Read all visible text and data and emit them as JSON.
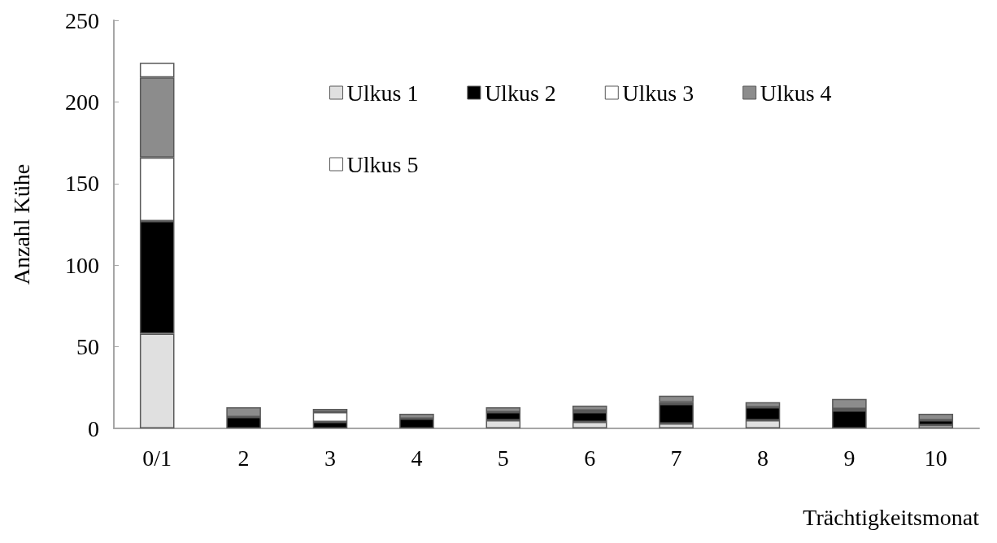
{
  "chart_data": {
    "type": "bar",
    "stacked": true,
    "xlabel": "Trächtigkeitsmonat",
    "ylabel": "Anzahl Kühe",
    "categories": [
      "0/1",
      "2",
      "3",
      "4",
      "5",
      "6",
      "7",
      "8",
      "9",
      "10"
    ],
    "series": [
      {
        "name": "Ulkus 1",
        "color": "#e0e0e0",
        "values": [
          58,
          null,
          null,
          null,
          5,
          4,
          3,
          5,
          null,
          2
        ]
      },
      {
        "name": "Ulkus 2",
        "color": "#000000",
        "values": [
          69,
          7,
          4,
          6,
          5,
          6,
          12,
          8,
          11,
          3
        ]
      },
      {
        "name": "Ulkus 3",
        "color": "#ffffff",
        "values": [
          39,
          null,
          6,
          null,
          null,
          1,
          1,
          null,
          1,
          null
        ]
      },
      {
        "name": "Ulkus 4",
        "color": "#8c8c8c",
        "values": [
          49,
          6,
          2,
          3,
          3,
          3,
          4,
          3,
          6,
          4
        ]
      },
      {
        "name": "Ulkus 5",
        "color": "#ffffff",
        "values": [
          9,
          null,
          null,
          null,
          null,
          null,
          null,
          null,
          null,
          null
        ]
      }
    ],
    "ylim": [
      0,
      250
    ],
    "yticks": [
      0,
      50,
      100,
      150,
      200,
      250
    ],
    "grid": false,
    "legend": "top"
  }
}
